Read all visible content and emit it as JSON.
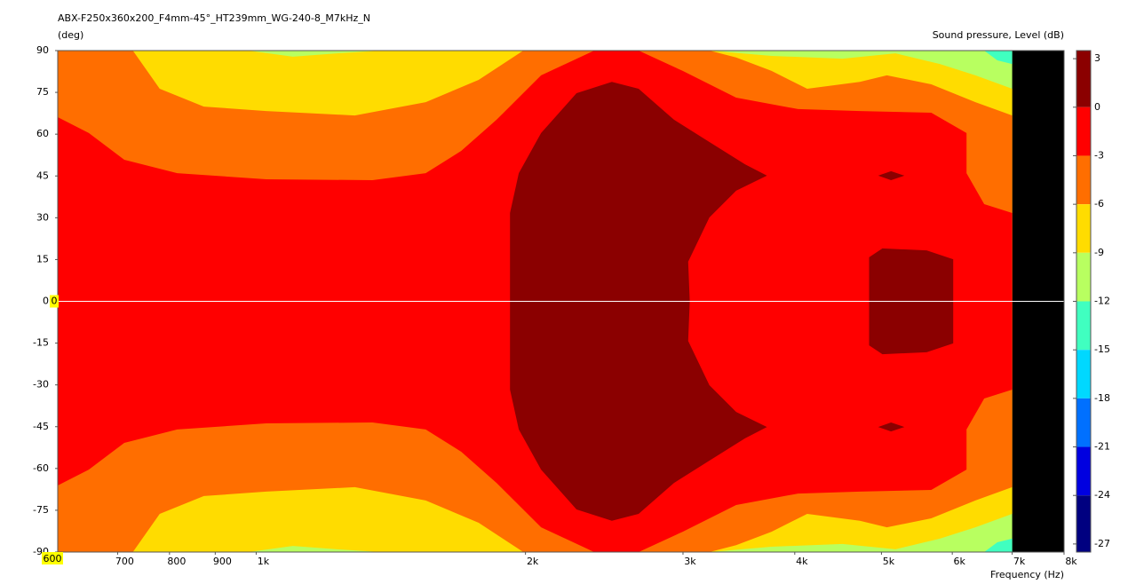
{
  "chart_data": {
    "type": "contour",
    "title": "ABX-F250x360x200_F4mm-45°_HT239mm_WG-240-8_M7kHz_N",
    "y_label": "(deg)",
    "x_label": "Frequency  (Hz)",
    "xscale": "log",
    "xlim": [
      600,
      8000
    ],
    "ylim": [
      -90,
      90
    ],
    "xticks": [
      700,
      800,
      900,
      {
        "value": 1000,
        "label": "1k"
      },
      {
        "value": 2000,
        "label": "2k"
      },
      {
        "value": 3000,
        "label": "3k"
      },
      {
        "value": 4000,
        "label": "4k"
      },
      {
        "value": 5000,
        "label": "5k"
      },
      {
        "value": 6000,
        "label": "6k"
      },
      {
        "value": 7000,
        "label": "7k"
      },
      {
        "value": 8000,
        "label": "8k"
      }
    ],
    "yticks": [
      90,
      75,
      60,
      45,
      30,
      15,
      0,
      -15,
      -30,
      -45,
      -60,
      -75,
      -90
    ],
    "cursor": {
      "x": 600,
      "y": 0,
      "color": "#ffff00"
    },
    "zero_line_color": "#ffffff",
    "no_data_color": "#000000",
    "contours": [
      {
        "color": "#b8ff60",
        "x": [
          600,
          7000,
          7000,
          600
        ],
        "y": [
          90,
          90,
          -90,
          -90
        ]
      },
      {
        "color": "#40ffc0",
        "x": [
          6514,
          7000,
          7000,
          6738
        ],
        "y": [
          90,
          90,
          85.2,
          86.5
        ]
      },
      {
        "color": "#40ffc0",
        "x": [
          6514,
          7000,
          7000,
          6738
        ],
        "y": [
          -90,
          -90,
          -85.2,
          -86.5
        ]
      },
      {
        "color": "#ffdc00",
        "x": [
          600,
          980,
          1099,
          1231,
          1380,
          3211,
          3768,
          4522,
          5184,
          5811,
          6368,
          7000,
          7000,
          6368,
          5811,
          5184,
          4522,
          3768,
          3211,
          1380,
          1231,
          1099,
          980,
          600
        ],
        "y": [
          90,
          90,
          87.8,
          89,
          90,
          90,
          88.1,
          87.1,
          89,
          85.2,
          81.1,
          76.3,
          -76.3,
          -81.1,
          -85.2,
          -89,
          -87.1,
          -88.1,
          -90,
          -90,
          -89,
          -87.8,
          -90,
          -90
        ]
      },
      {
        "color": "#ff6e00",
        "x": [
          600,
          728,
          780,
          874,
          1026,
          1289,
          1547,
          1773,
          1989,
          3211,
          3440,
          3768,
          4130,
          4730,
          5070,
          5684,
          6368,
          7000,
          7000,
          6368,
          5684,
          5070,
          4730,
          4130,
          3768,
          3440,
          3211,
          1989,
          1773,
          1547,
          1289,
          1026,
          874,
          780,
          728,
          600
        ],
        "y": [
          90,
          90,
          76.3,
          69.9,
          68.3,
          66.7,
          71.5,
          79.5,
          90,
          90,
          87.5,
          82.7,
          76.3,
          78.8,
          81.1,
          77.9,
          71.5,
          66.7,
          -66.7,
          -71.5,
          -77.9,
          -81.1,
          -78.8,
          -76.3,
          -82.7,
          -87.5,
          -90,
          -90,
          -79.5,
          -71.5,
          -66.7,
          -68.3,
          -69.9,
          -76.3,
          -90,
          -90
        ]
      },
      {
        "color": "#ff0000",
        "x": [
          600,
          650,
          712,
          816,
          1026,
          1349,
          1547,
          1695,
          1857,
          2082,
          2387,
          2676,
          2998,
          3440,
          4034,
          4730,
          5684,
          6224,
          6224,
          6514,
          7000,
          7000,
          6514,
          6224,
          6224,
          5684,
          4730,
          4034,
          3440,
          2998,
          2676,
          2387,
          2082,
          1857,
          1695,
          1547,
          1349,
          1026,
          816,
          712,
          650,
          600
        ],
        "y": [
          66.1,
          60.4,
          50.8,
          46,
          43.8,
          43.5,
          46,
          54,
          65.2,
          81.1,
          90,
          90,
          82.7,
          73.1,
          69,
          68.3,
          67.7,
          60.4,
          46,
          34.9,
          31.7,
          -31.7,
          -34.9,
          -46,
          -60.4,
          -67.7,
          -68.3,
          -69,
          -73.1,
          -82.7,
          -90,
          -90,
          -81.1,
          -65.2,
          -54,
          -46,
          -43.5,
          -43.8,
          -46,
          -50.8,
          -60.4,
          -66.1
        ]
      },
      {
        "color": "#8b0000",
        "x": [
          1922,
          1966,
          2082,
          2281,
          2498,
          2676,
          2930,
          3211,
          3519,
          3724,
          3440,
          3211,
          3040,
          3053,
          3040,
          3211,
          3440,
          3724,
          3519,
          3211,
          2930,
          2676,
          2498,
          2281,
          2082,
          1966,
          1922
        ],
        "y": [
          31.7,
          46,
          60.4,
          74.7,
          78.8,
          76.3,
          65.2,
          57.2,
          49.2,
          45.1,
          39.7,
          30.1,
          14.2,
          0,
          -14.2,
          -30.1,
          -39.7,
          -45.1,
          -49.2,
          -57.2,
          -65.2,
          -76.3,
          -78.8,
          -74.7,
          -60.4,
          -46,
          -31.7
        ]
      },
      {
        "color": "#8b0000",
        "x": [
          4843,
          5012,
          5617,
          6014,
          6014,
          5617,
          5012,
          4843
        ],
        "y": [
          15.8,
          19,
          18.3,
          15.1,
          -15.1,
          -18.3,
          -19,
          -15.8
        ]
      },
      {
        "color": "#8b0000",
        "x": [
          4958,
          5125,
          5305,
          5125
        ],
        "y": [
          45.1,
          46.7,
          45.1,
          43.5
        ]
      },
      {
        "color": "#8b0000",
        "x": [
          4958,
          5125,
          5305,
          5125
        ],
        "y": [
          -45.1,
          -43.5,
          -45.1,
          -46.7
        ]
      }
    ],
    "colorbar": {
      "label": "Sound pressure, Level  (dB)",
      "lim": [
        -27.5,
        3.5
      ],
      "ticks": [
        3,
        0,
        -3,
        -6,
        -9,
        -12,
        -15,
        -18,
        -21,
        -24,
        -27
      ],
      "boundaries": [
        0,
        -3,
        -6,
        -9,
        -12,
        -15,
        -18,
        -21,
        -24
      ],
      "colors": [
        "#8b0000",
        "#ff0000",
        "#ff6e00",
        "#ffdc00",
        "#b8ff60",
        "#40ffc0",
        "#00d8ff",
        "#0070ff",
        "#0000e0",
        "#000080"
      ]
    }
  }
}
